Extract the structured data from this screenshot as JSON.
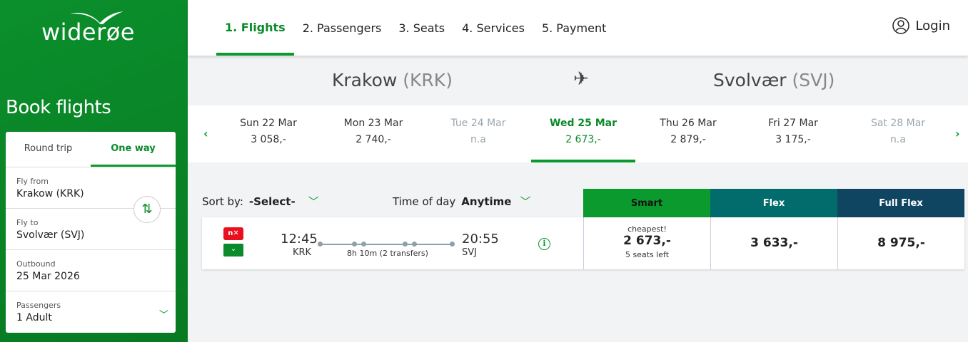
{
  "brand": {
    "name": "widerøe",
    "color": "#0a8a2a"
  },
  "sidebar": {
    "title": "Book flights",
    "trip_types": [
      "Round trip",
      "One way"
    ],
    "selected_trip": "One way",
    "fly_from": {
      "label": "Fly from",
      "value": "Krakow (KRK)"
    },
    "fly_to": {
      "label": "Fly to",
      "value": "Svolvær (SVJ)"
    },
    "outbound": {
      "label": "Outbound",
      "value": "25 Mar 2026"
    },
    "passengers": {
      "label": "Passengers",
      "value": "1 Adult"
    }
  },
  "header": {
    "steps": [
      "1. Flights",
      "2. Passengers",
      "3. Seats",
      "4. Services",
      "5. Payment"
    ],
    "active_step": 0,
    "login": "Login"
  },
  "route": {
    "from_city": "Krakow",
    "from_code": "(KRK)",
    "to_city": "Svolvær",
    "to_code": "(SVJ)"
  },
  "dates": [
    {
      "day": "Sun 22 Mar",
      "price": "3 058,-"
    },
    {
      "day": "Mon 23 Mar",
      "price": "2 740,-"
    },
    {
      "day": "Tue 24 Mar",
      "price": "n.a"
    },
    {
      "day": "Wed 25 Mar",
      "price": "2 673,-"
    },
    {
      "day": "Thu 26 Mar",
      "price": "2 879,-"
    },
    {
      "day": "Fri 27 Mar",
      "price": "3 175,-"
    },
    {
      "day": "Sat 28 Mar",
      "price": "n.a"
    }
  ],
  "filters": {
    "sort_label": "Sort by:",
    "sort_value": "-Select-",
    "time_label": "Time of day",
    "time_value": "Anytime"
  },
  "fares": [
    {
      "name": "Smart",
      "color": "#0a9a2d"
    },
    {
      "name": "Flex",
      "color": "#026b6b"
    },
    {
      "name": "Full Flex",
      "color": "#0f4560"
    }
  ],
  "flight": {
    "airlines": [
      "nx",
      "wf"
    ],
    "dep_time": "12:45",
    "dep_code": "KRK",
    "arr_time": "20:55",
    "arr_code": "SVJ",
    "duration": "8h 10m (2 transfers)",
    "smart": {
      "note": "cheapest!",
      "price": "2 673,-",
      "seats": "5 seats left"
    },
    "flex": "3 633,-",
    "full_flex": "8 975,-"
  }
}
